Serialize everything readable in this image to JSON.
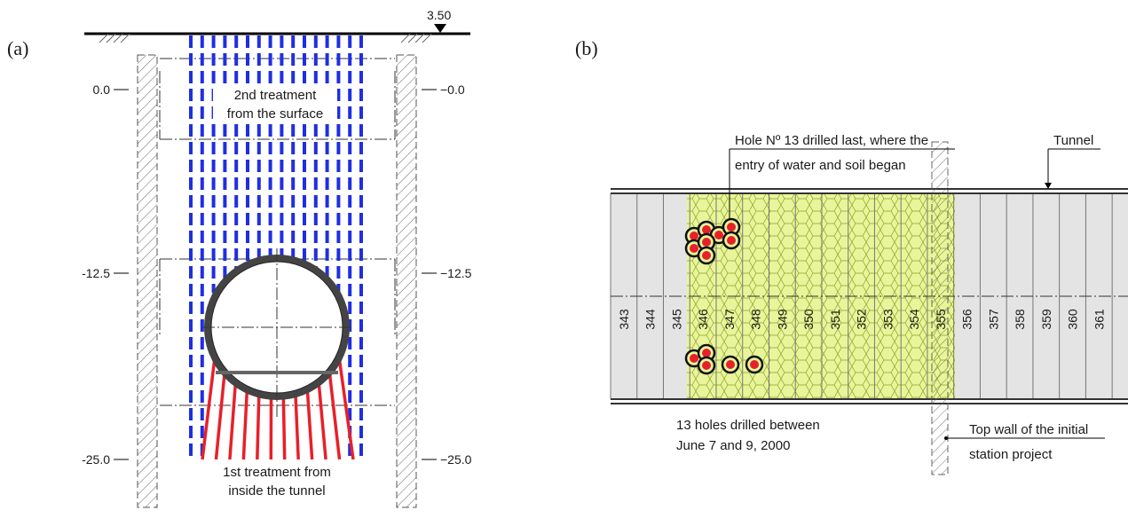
{
  "panel_a": {
    "label": "(a)",
    "surface_level": "3.50",
    "levels": [
      {
        "left": "0.0",
        "right": "−0.0"
      },
      {
        "left": "-12.5",
        "right": "−12.5"
      },
      {
        "left": "-25.0",
        "right": "−25.0"
      }
    ],
    "second_treatment": {
      "line1": "2nd treatment",
      "line2": "from the surface"
    },
    "first_treatment": {
      "line1": "1st treatment from",
      "line2": "inside the tunnel"
    },
    "colors": {
      "second_treatment": "#1f2fe0",
      "first_treatment": "#e8202a"
    }
  },
  "panel_b": {
    "label": "(b)",
    "tunnel_label": "Tunnel",
    "hole13_note": {
      "line1": "Hole Nº 13 drilled last, where the",
      "line2": "entry of water and soil began"
    },
    "holes_note": {
      "line1": "13 holes drilled between",
      "line2": "June 7 and 9, 2000"
    },
    "wall_note": {
      "line1": "Top wall of the initial",
      "line2": "station project"
    },
    "rings": [
      "343",
      "344",
      "345",
      "346",
      "347",
      "348",
      "349",
      "350",
      "351",
      "352",
      "353",
      "354",
      "355",
      "356",
      "357",
      "358",
      "359",
      "360",
      "361"
    ],
    "colors": {
      "treated_zone": "#e9f59a",
      "tunnel": "#e4e4e4",
      "hole": "#e8202a"
    }
  }
}
